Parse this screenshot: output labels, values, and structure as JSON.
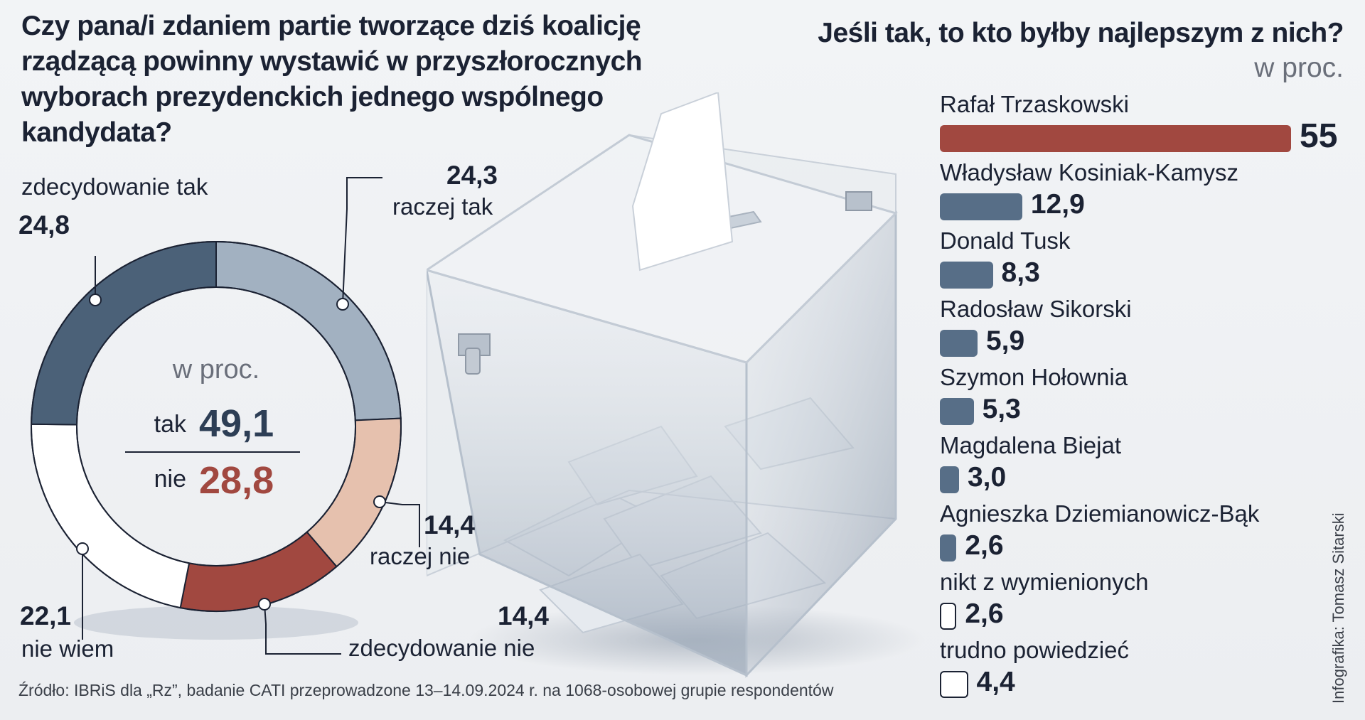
{
  "left_chart": {
    "question": "Czy pana/i zdaniem partie tworzące dziś koalicję rządzącą powinny wystawić w przyszłorocznych wyborach prezydenckich jednego wspólnego kandydata?",
    "unit": "w proc.",
    "summary": {
      "tak_label": "tak",
      "tak_value": "49,1",
      "nie_label": "nie",
      "nie_value": "28,8"
    }
  },
  "right_chart": {
    "question": "Jeśli tak, to kto byłby najlepszym z nich?",
    "unit": "w proc."
  },
  "chart_data": [
    {
      "type": "pie",
      "title": "Czy pana/i zdaniem partie tworzące dziś koalicję rządzącą powinny wystawić w przyszłorocznych wyborach prezydenckich jednego wspólnego kandydata?",
      "unit": "w proc.",
      "categories": [
        "zdecydowanie tak",
        "raczej tak",
        "raczej nie",
        "zdecydowanie nie",
        "nie wiem"
      ],
      "values": [
        24.8,
        24.3,
        14.4,
        14.4,
        22.1
      ],
      "value_labels": [
        "24,8",
        "24,3",
        "14,4",
        "14,4",
        "22,1"
      ],
      "colors": [
        "#4b6178",
        "#a2b1c1",
        "#e6c1ae",
        "#a14840",
        "#ffffff"
      ]
    },
    {
      "type": "bar",
      "orientation": "horizontal",
      "title": "Jeśli tak, to kto byłby najlepszym z nich?",
      "unit": "w proc.",
      "categories": [
        "Rafał Trzaskowski",
        "Władysław Kosiniak-Kamysz",
        "Donald Tusk",
        "Radosław Sikorski",
        "Szymon Hołownia",
        "Magdalena Biejat",
        "Agnieszka Dziemianowicz-Bąk",
        "nikt z wymienionych",
        "trudno powiedzieć"
      ],
      "values": [
        55,
        12.9,
        8.3,
        5.9,
        5.3,
        3.0,
        2.6,
        2.6,
        4.4
      ],
      "value_labels": [
        "55",
        "12,9",
        "8,3",
        "5,9",
        "5,3",
        "3,0",
        "2,6",
        "2,6",
        "4,4"
      ],
      "colors": [
        "#a14840",
        "#576e87",
        "#576e87",
        "#576e87",
        "#576e87",
        "#576e87",
        "#576e87",
        "#ffffff",
        "#ffffff"
      ]
    }
  ],
  "source": "Źródło: IBRiS dla „Rz”, badanie CATI przeprowadzone 13–14.09.2024 r. na 1068-osobowej grupie respondentów",
  "credit": "Infografika: Tomasz Sitarski"
}
